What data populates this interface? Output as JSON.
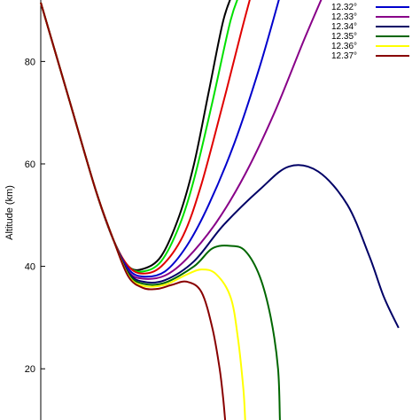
{
  "chart_data": {
    "type": "line",
    "title": "",
    "xlabel": "",
    "ylabel": "Altitude (km)",
    "ylim": [
      10,
      92
    ],
    "y_ticks": [
      "20",
      "40",
      "60",
      "80"
    ],
    "grid": false,
    "legend_position": "top-right",
    "series": [
      {
        "name": "",
        "color": "#000000",
        "points": [
          [
            0.0,
            91.5
          ],
          [
            0.08,
            72
          ],
          [
            0.15,
            55
          ],
          [
            0.2,
            45
          ],
          [
            0.24,
            40
          ],
          [
            0.28,
            39.5
          ],
          [
            0.33,
            42
          ],
          [
            0.38,
            50
          ],
          [
            0.42,
            60
          ],
          [
            0.46,
            74
          ],
          [
            0.5,
            88
          ],
          [
            0.53,
            94
          ]
        ]
      },
      {
        "name": "",
        "color": "#00e000",
        "points": [
          [
            0.0,
            91.5
          ],
          [
            0.08,
            72
          ],
          [
            0.15,
            55
          ],
          [
            0.2,
            45
          ],
          [
            0.24,
            40
          ],
          [
            0.28,
            39
          ],
          [
            0.33,
            41
          ],
          [
            0.38,
            48
          ],
          [
            0.42,
            57
          ],
          [
            0.47,
            72
          ],
          [
            0.52,
            88
          ],
          [
            0.55,
            94
          ]
        ]
      },
      {
        "name": "",
        "color": "#e00000",
        "points": [
          [
            0.0,
            91.5
          ],
          [
            0.08,
            72
          ],
          [
            0.15,
            55
          ],
          [
            0.2,
            45
          ],
          [
            0.24,
            40
          ],
          [
            0.28,
            38.6
          ],
          [
            0.33,
            40
          ],
          [
            0.39,
            46
          ],
          [
            0.44,
            56
          ],
          [
            0.5,
            72
          ],
          [
            0.55,
            86
          ],
          [
            0.58,
            94
          ]
        ]
      },
      {
        "name": "",
        "color": "#0000cc",
        "points": [
          [
            0.0,
            91.5
          ],
          [
            0.08,
            72
          ],
          [
            0.15,
            55
          ],
          [
            0.2,
            45
          ],
          [
            0.24,
            39.5
          ],
          [
            0.28,
            38
          ],
          [
            0.34,
            39
          ],
          [
            0.4,
            44
          ],
          [
            0.46,
            52
          ],
          [
            0.53,
            64
          ],
          [
            0.6,
            79
          ],
          [
            0.66,
            94
          ]
        ]
      },
      {
        "name": "",
        "color": "#880088",
        "points": [
          [
            0.0,
            91.5
          ],
          [
            0.08,
            72
          ],
          [
            0.15,
            55
          ],
          [
            0.2,
            45
          ],
          [
            0.24,
            39
          ],
          [
            0.28,
            37.6
          ],
          [
            0.34,
            38.2
          ],
          [
            0.4,
            41.5
          ],
          [
            0.48,
            48.5
          ],
          [
            0.56,
            58
          ],
          [
            0.64,
            70
          ],
          [
            0.72,
            84
          ],
          [
            0.78,
            94
          ]
        ]
      },
      {
        "name": "",
        "color": "#000066",
        "points": [
          [
            0.0,
            91.5
          ],
          [
            0.08,
            72
          ],
          [
            0.15,
            55
          ],
          [
            0.2,
            45
          ],
          [
            0.24,
            38.8
          ],
          [
            0.28,
            37
          ],
          [
            0.34,
            37.3
          ],
          [
            0.42,
            41
          ],
          [
            0.5,
            48
          ],
          [
            0.6,
            55
          ],
          [
            0.68,
            59.5
          ],
          [
            0.76,
            58.5
          ],
          [
            0.84,
            52
          ],
          [
            0.9,
            42
          ],
          [
            0.94,
            34
          ],
          [
            0.98,
            28
          ]
        ]
      },
      {
        "name": "",
        "color": "#006600",
        "points": [
          [
            0.0,
            91.5
          ],
          [
            0.08,
            72
          ],
          [
            0.15,
            55
          ],
          [
            0.2,
            45
          ],
          [
            0.24,
            38.5
          ],
          [
            0.28,
            36.6
          ],
          [
            0.34,
            36.8
          ],
          [
            0.42,
            40
          ],
          [
            0.47,
            43.5
          ],
          [
            0.52,
            44
          ],
          [
            0.56,
            43
          ],
          [
            0.6,
            38
          ],
          [
            0.63,
            30
          ],
          [
            0.65,
            20
          ],
          [
            0.655,
            10
          ]
        ]
      },
      {
        "name": "",
        "color": "#ffff00",
        "points": [
          [
            0.0,
            91.5
          ],
          [
            0.08,
            72
          ],
          [
            0.15,
            55
          ],
          [
            0.2,
            45
          ],
          [
            0.24,
            38.2
          ],
          [
            0.28,
            36.2
          ],
          [
            0.34,
            36.4
          ],
          [
            0.4,
            38.4
          ],
          [
            0.44,
            39.4
          ],
          [
            0.48,
            38.5
          ],
          [
            0.52,
            34
          ],
          [
            0.54,
            26
          ],
          [
            0.555,
            16
          ],
          [
            0.56,
            10
          ]
        ]
      },
      {
        "name": "",
        "color": "#880000",
        "points": [
          [
            0.0,
            91.5
          ],
          [
            0.08,
            72
          ],
          [
            0.15,
            55
          ],
          [
            0.2,
            45
          ],
          [
            0.24,
            38
          ],
          [
            0.28,
            35.8
          ],
          [
            0.32,
            35.6
          ],
          [
            0.36,
            36.4
          ],
          [
            0.4,
            37
          ],
          [
            0.44,
            35
          ],
          [
            0.47,
            28
          ],
          [
            0.49,
            20
          ],
          [
            0.5,
            14
          ],
          [
            0.505,
            10
          ]
        ]
      }
    ],
    "legend_entries": [
      {
        "label": "12.32°",
        "color": "#0000cc"
      },
      {
        "label": "12.33°",
        "color": "#880088"
      },
      {
        "label": "12.34°",
        "color": "#000066"
      },
      {
        "label": "12.35°",
        "color": "#006600"
      },
      {
        "label": "12.36°",
        "color": "#ffff00"
      },
      {
        "label": "12.37°",
        "color": "#880000"
      }
    ]
  }
}
